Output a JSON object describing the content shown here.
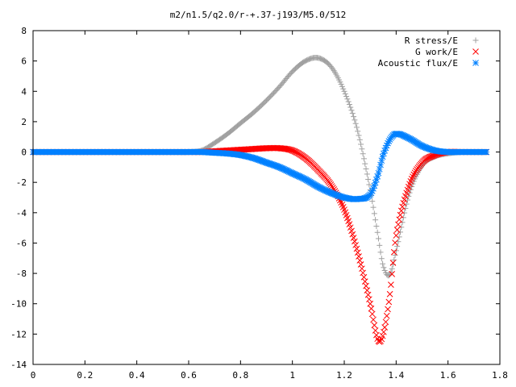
{
  "chart_data": {
    "type": "scatter",
    "title": "m2/n1.5/q2.0/r-+.37-j193/M5.0/512",
    "xlabel": "",
    "ylabel": "",
    "xlim": [
      0,
      1.8
    ],
    "ylim": [
      -14,
      8
    ],
    "xticks": [
      "0",
      "0.2",
      "0.4",
      "0.6",
      "0.8",
      "1",
      "1.2",
      "1.4",
      "1.6",
      "1.8"
    ],
    "yticks": [
      "8",
      "6",
      "4",
      "2",
      "0",
      "-2",
      "-4",
      "-6",
      "-8",
      "-10",
      "-12",
      "-14"
    ],
    "grid": false,
    "legend_position": "top-right",
    "x": [
      0,
      0.05,
      0.1,
      0.15,
      0.2,
      0.25,
      0.3,
      0.35,
      0.4,
      0.45,
      0.5,
      0.55,
      0.6,
      0.65,
      0.7,
      0.75,
      0.8,
      0.85,
      0.9,
      0.95,
      1.0,
      1.05,
      1.1,
      1.15,
      1.2,
      1.25,
      1.3,
      1.33,
      1.35,
      1.375,
      1.4,
      1.45,
      1.5,
      1.55,
      1.6,
      1.65,
      1.7,
      1.75
    ],
    "series": [
      {
        "name": "R stress/E",
        "marker": "+",
        "color": "#a0a0a0",
        "values": [
          0,
          0,
          0,
          0,
          0,
          0,
          0,
          0,
          0,
          0,
          0,
          0,
          0,
          0.1,
          0.6,
          1.2,
          1.9,
          2.6,
          3.4,
          4.3,
          5.3,
          6.0,
          6.2,
          5.6,
          4.0,
          1.5,
          -2.5,
          -5.5,
          -7.5,
          -8.1,
          -6.5,
          -2.8,
          -0.9,
          -0.3,
          -0.1,
          0,
          0,
          0
        ]
      },
      {
        "name": "G work/E",
        "marker": "x",
        "color": "#ff0000",
        "values": [
          0,
          0,
          0,
          0,
          0,
          0,
          0,
          0,
          0,
          0,
          0,
          0,
          0,
          0,
          0.05,
          0.1,
          0.15,
          0.2,
          0.25,
          0.25,
          0.1,
          -0.4,
          -1.2,
          -2.2,
          -3.8,
          -6.5,
          -10.0,
          -12.4,
          -12.0,
          -9.5,
          -5.5,
          -2.2,
          -0.7,
          -0.2,
          0,
          0,
          0,
          0
        ]
      },
      {
        "name": "Acoustic flux/E",
        "marker": "*",
        "color": "#0080ff",
        "values": [
          0,
          0,
          0,
          0,
          0,
          0,
          0,
          0,
          0,
          0,
          0,
          0,
          0,
          0,
          -0.05,
          -0.1,
          -0.2,
          -0.4,
          -0.7,
          -1.0,
          -1.4,
          -1.8,
          -2.3,
          -2.7,
          -3.0,
          -3.1,
          -2.8,
          -1.5,
          -0.2,
          0.8,
          1.2,
          0.9,
          0.4,
          0.1,
          0,
          0,
          0,
          0
        ]
      }
    ]
  }
}
